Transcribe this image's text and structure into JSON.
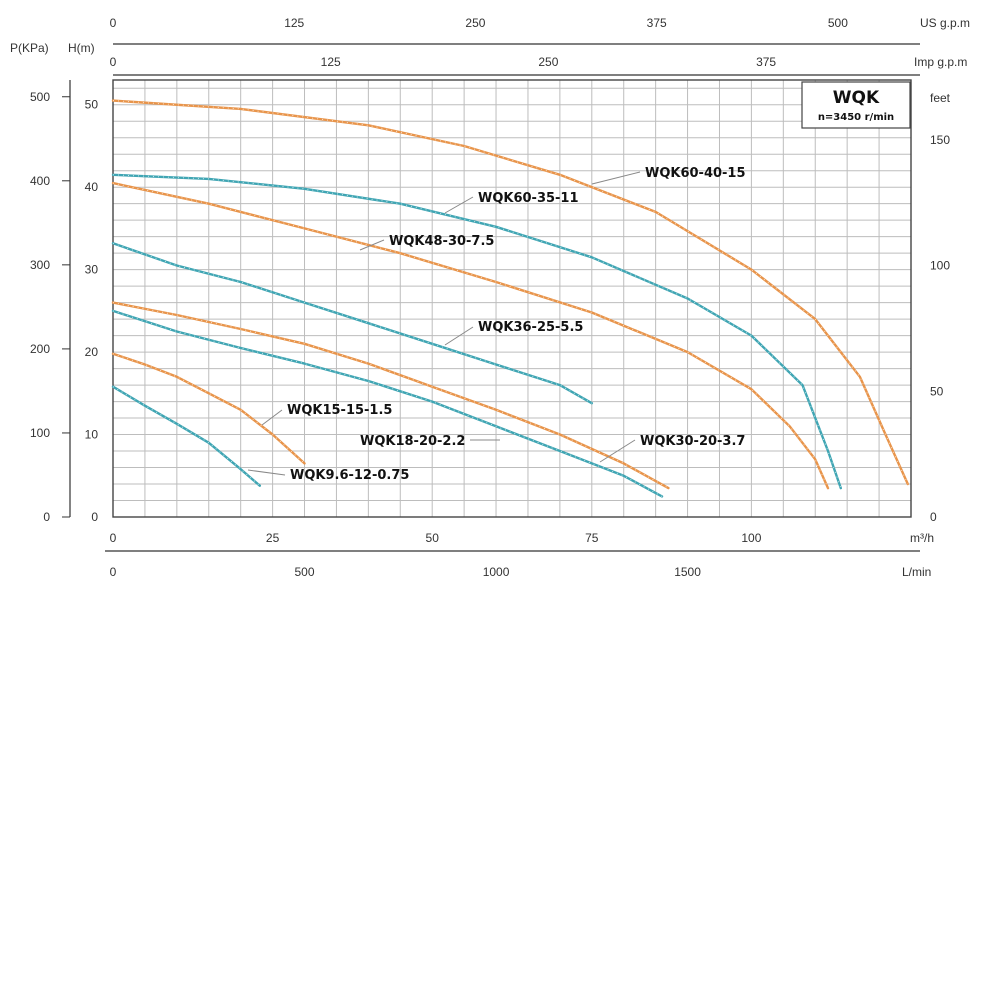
{
  "chart_data": {
    "type": "line",
    "title": "WQK",
    "subtitle": "n=3450 r/min",
    "xlabel": "m³/h",
    "ylabel": "H(m)",
    "xlim": [
      0,
      125
    ],
    "ylim": [
      0,
      53
    ],
    "grid": true,
    "x_ticks": [
      "0",
      "25",
      "50",
      "75",
      "100"
    ],
    "y_ticks": [
      "0",
      "10",
      "20",
      "30",
      "40",
      "50"
    ],
    "secondary_axes": {
      "pressure": {
        "label": "P(KPa)",
        "ticks": [
          "0",
          "100",
          "200",
          "300",
          "400",
          "500"
        ]
      },
      "feet": {
        "label": "feet",
        "ticks": [
          "0",
          "50",
          "100",
          "150"
        ]
      },
      "lmin": {
        "label": "L/min",
        "ticks": [
          "0",
          "500",
          "1000",
          "1500"
        ]
      },
      "usgpm": {
        "label": "US g.p.m",
        "ticks": [
          "0",
          "125",
          "250",
          "375",
          "500"
        ]
      },
      "impgpm": {
        "label": "Imp g.p.m",
        "ticks": [
          "0",
          "125",
          "250",
          "375"
        ]
      }
    },
    "colors": {
      "orange": "#e8944a",
      "teal": "#3fa5b3",
      "grid": "#bdbdbd"
    },
    "series": [
      {
        "name": "WQK60-40-15",
        "color": "orange",
        "x": [
          0,
          20,
          40,
          55,
          70,
          85,
          100,
          110,
          117,
          121,
          124.5
        ],
        "y": [
          50.5,
          49.5,
          47.5,
          45,
          41.5,
          37,
          30,
          24,
          17,
          10,
          4
        ]
      },
      {
        "name": "WQK60-35-11",
        "color": "teal",
        "x": [
          0,
          15,
          30,
          45,
          60,
          75,
          90,
          100,
          108,
          112,
          114
        ],
        "y": [
          41.5,
          41,
          39.8,
          38,
          35.2,
          31.5,
          26.5,
          22,
          16,
          8,
          3.5
        ]
      },
      {
        "name": "WQK48-30-7.5",
        "color": "orange",
        "x": [
          0,
          15,
          30,
          45,
          60,
          75,
          90,
          100,
          106,
          110,
          112
        ],
        "y": [
          40.5,
          38,
          35,
          32,
          28.5,
          24.8,
          20,
          15.5,
          11,
          7,
          3.5
        ]
      },
      {
        "name": "WQK36-25-5.5",
        "color": "teal",
        "x": [
          0,
          10,
          20,
          30,
          40,
          50,
          60,
          70,
          75
        ],
        "y": [
          33.2,
          30.5,
          28.5,
          26,
          23.5,
          21,
          18.5,
          16,
          13.8
        ]
      },
      {
        "name": "WQK30-20-3.7",
        "color": "orange",
        "x": [
          0,
          10,
          20,
          30,
          40,
          50,
          60,
          70,
          80,
          87
        ],
        "y": [
          26,
          24.5,
          22.8,
          21,
          18.6,
          15.8,
          13,
          10,
          6.5,
          3.5
        ]
      },
      {
        "name": "WQK18-20-2.2",
        "color": "teal",
        "x": [
          0,
          10,
          20,
          30,
          40,
          50,
          60,
          70,
          80,
          86
        ],
        "y": [
          25,
          22.5,
          20.5,
          18.6,
          16.5,
          14,
          11,
          8,
          5,
          2.5
        ]
      },
      {
        "name": "WQK15-15-1.5",
        "color": "orange",
        "x": [
          0,
          5,
          10,
          15,
          20,
          25,
          30
        ],
        "y": [
          19.8,
          18.5,
          17,
          15,
          13,
          10,
          6.5
        ]
      },
      {
        "name": "WQK9.6-12-0.75",
        "color": "teal",
        "x": [
          0,
          5,
          10,
          15,
          20,
          23
        ],
        "y": [
          15.8,
          13.5,
          11.3,
          9,
          5.8,
          3.8
        ]
      }
    ]
  }
}
